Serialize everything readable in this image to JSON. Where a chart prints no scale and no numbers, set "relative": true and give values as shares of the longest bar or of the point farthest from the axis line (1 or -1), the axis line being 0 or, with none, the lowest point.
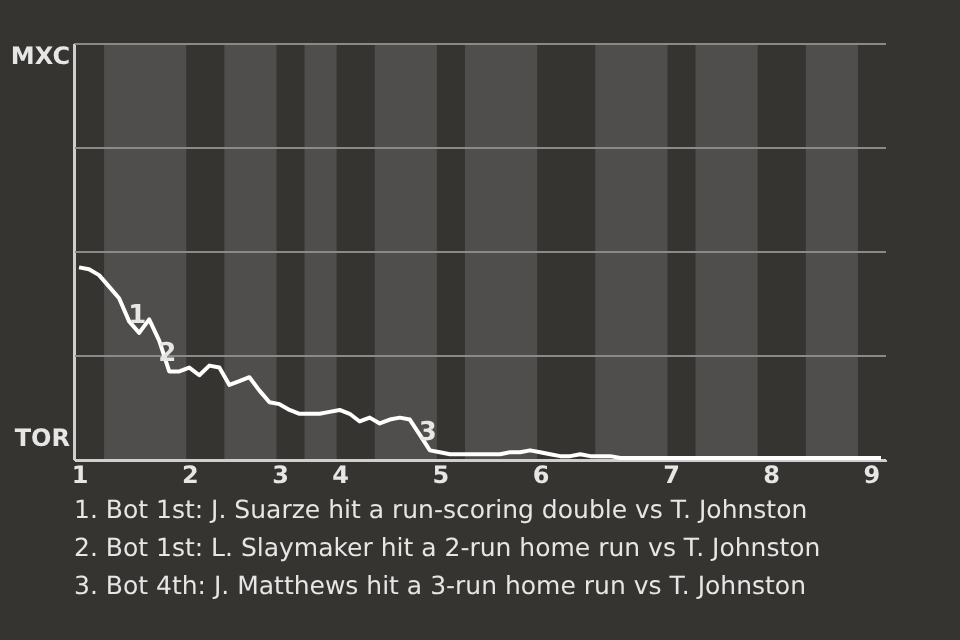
{
  "chart_data": {
    "type": "line",
    "relative": true,
    "ref_lines": [
      {
        "axis": "y",
        "value": 0.54,
        "label": null,
        "color": "#8a8a8a"
      },
      {
        "axis": "y",
        "value": 1.08,
        "label": null,
        "color": "#8a8a8a"
      },
      {
        "axis": "y",
        "value": 1.62,
        "label": null,
        "color": "#8a8a8a"
      }
    ],
    "categories": [
      "1",
      null,
      null,
      null,
      null,
      null,
      null,
      null,
      null,
      null,
      null,
      "2",
      null,
      null,
      null,
      null,
      null,
      null,
      null,
      null,
      "3",
      null,
      null,
      null,
      null,
      null,
      "4",
      null,
      null,
      null,
      null,
      null,
      null,
      null,
      null,
      null,
      "5",
      null,
      null,
      null,
      null,
      null,
      null,
      null,
      null,
      null,
      "6",
      null,
      null,
      null,
      null,
      null,
      null,
      null,
      null,
      null,
      null,
      null,
      null,
      "7",
      null,
      null,
      null,
      null,
      null,
      null,
      null,
      null,
      null,
      "8",
      null,
      null,
      null,
      null,
      null,
      null,
      null,
      null,
      null,
      "9",
      null
    ],
    "series": [
      {
        "color": "#ffffff",
        "values": [
          1.0,
          0.99,
          0.96,
          0.9,
          0.84,
          0.72,
          0.66,
          0.73,
          0.62,
          0.46,
          0.46,
          0.48,
          0.44,
          0.49,
          0.48,
          0.39,
          0.41,
          0.43,
          0.36,
          0.3,
          0.29,
          0.26,
          0.24,
          0.24,
          0.24,
          0.25,
          0.26,
          0.24,
          0.2,
          0.22,
          0.19,
          0.21,
          0.22,
          0.21,
          0.13,
          0.05,
          0.04,
          0.03,
          0.03,
          0.03,
          0.03,
          0.03,
          0.03,
          0.04,
          0.04,
          0.05,
          0.04,
          0.03,
          0.02,
          0.02,
          0.03,
          0.02,
          0.02,
          0.02,
          0.01,
          0.01,
          0.01,
          0.01,
          0.01,
          0.01,
          0.01,
          0.01,
          0.01,
          0.01,
          0.01,
          0.01,
          0.01,
          0.01,
          0.01,
          0.01,
          0.01,
          0.01,
          0.01,
          0.01,
          0.01,
          0.01,
          0.01,
          0.01,
          0.01,
          0.01,
          0.01
        ]
      }
    ],
    "annotations": [
      {
        "text": "MXC"
      },
      {
        "text": "TOR"
      },
      {
        "text": "1",
        "y": 0.66
      },
      {
        "text": "2",
        "y": 0.46
      },
      {
        "text": "3",
        "y": 0.05
      },
      "1. Bot 1st: J. Suarze hit a run-scoring double vs T. Johnston",
      "2. Bot 1st: L. Slaymaker hit a 2-run home run vs T. Johnston",
      "3. Bot 4th: J. Matthews hit a 3-run home run vs T. Johnston"
    ]
  }
}
